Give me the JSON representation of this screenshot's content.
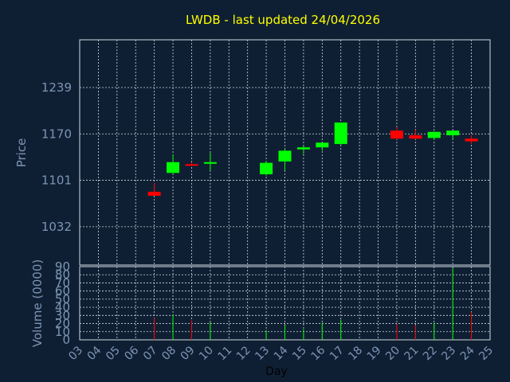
{
  "chart_data": {
    "type": "candlestick",
    "title": "LWDB - last updated 24/04/2026",
    "xlabel": "Day",
    "x_ticks": [
      "03",
      "04",
      "05",
      "06",
      "07",
      "08",
      "09",
      "10",
      "11",
      "12",
      "13",
      "14",
      "15",
      "16",
      "17",
      "18",
      "19",
      "20",
      "21",
      "22",
      "23",
      "24",
      "25"
    ],
    "price_panel": {
      "ylabel": "Price",
      "y_ticks": [
        1032,
        1101,
        1170,
        1239
      ],
      "ylim": [
        975,
        1310
      ],
      "grid": true
    },
    "volume_panel": {
      "ylabel": "Volume (0000)",
      "y_ticks": [
        0,
        10,
        20,
        30,
        40,
        50,
        60,
        70,
        80,
        90
      ],
      "ylim": [
        0,
        90
      ],
      "grid": true
    },
    "colors": {
      "background": "#0f1f33",
      "grid": "#cfd8e0",
      "axis_text": "#7b95b4",
      "title": "#ffff00",
      "up": "#00ff00",
      "down": "#ff0000"
    },
    "series": [
      {
        "day": "07",
        "open": 1084,
        "high": 1097,
        "low": 1078,
        "close": 1078,
        "volume": 27
      },
      {
        "day": "08",
        "open": 1112,
        "high": 1140,
        "low": 1110,
        "close": 1128,
        "volume": 31
      },
      {
        "day": "09",
        "open": 1125,
        "high": 1128,
        "low": 1122,
        "close": 1123,
        "volume": 24
      },
      {
        "day": "10",
        "open": 1126,
        "high": 1142,
        "low": 1115,
        "close": 1128,
        "volume": 22
      },
      {
        "day": "13",
        "open": 1110,
        "high": 1130,
        "low": 1108,
        "close": 1127,
        "volume": 12
      },
      {
        "day": "14",
        "open": 1129,
        "high": 1148,
        "low": 1116,
        "close": 1145,
        "volume": 18
      },
      {
        "day": "15",
        "open": 1147,
        "high": 1152,
        "low": 1140,
        "close": 1150,
        "volume": 13
      },
      {
        "day": "16",
        "open": 1150,
        "high": 1158,
        "low": 1145,
        "close": 1157,
        "volume": 21
      },
      {
        "day": "17",
        "open": 1155,
        "high": 1187,
        "low": 1153,
        "close": 1187,
        "volume": 25
      },
      {
        "day": "20",
        "open": 1175,
        "high": 1180,
        "low": 1162,
        "close": 1163,
        "volume": 19
      },
      {
        "day": "21",
        "open": 1168,
        "high": 1176,
        "low": 1162,
        "close": 1163,
        "volume": 18
      },
      {
        "day": "22",
        "open": 1164,
        "high": 1174,
        "low": 1161,
        "close": 1173,
        "volume": 21
      },
      {
        "day": "23",
        "open": 1168,
        "high": 1175,
        "low": 1163,
        "close": 1175,
        "volume": 88
      },
      {
        "day": "24",
        "open": 1163,
        "high": 1168,
        "low": 1155,
        "close": 1159,
        "volume": 34
      }
    ]
  }
}
